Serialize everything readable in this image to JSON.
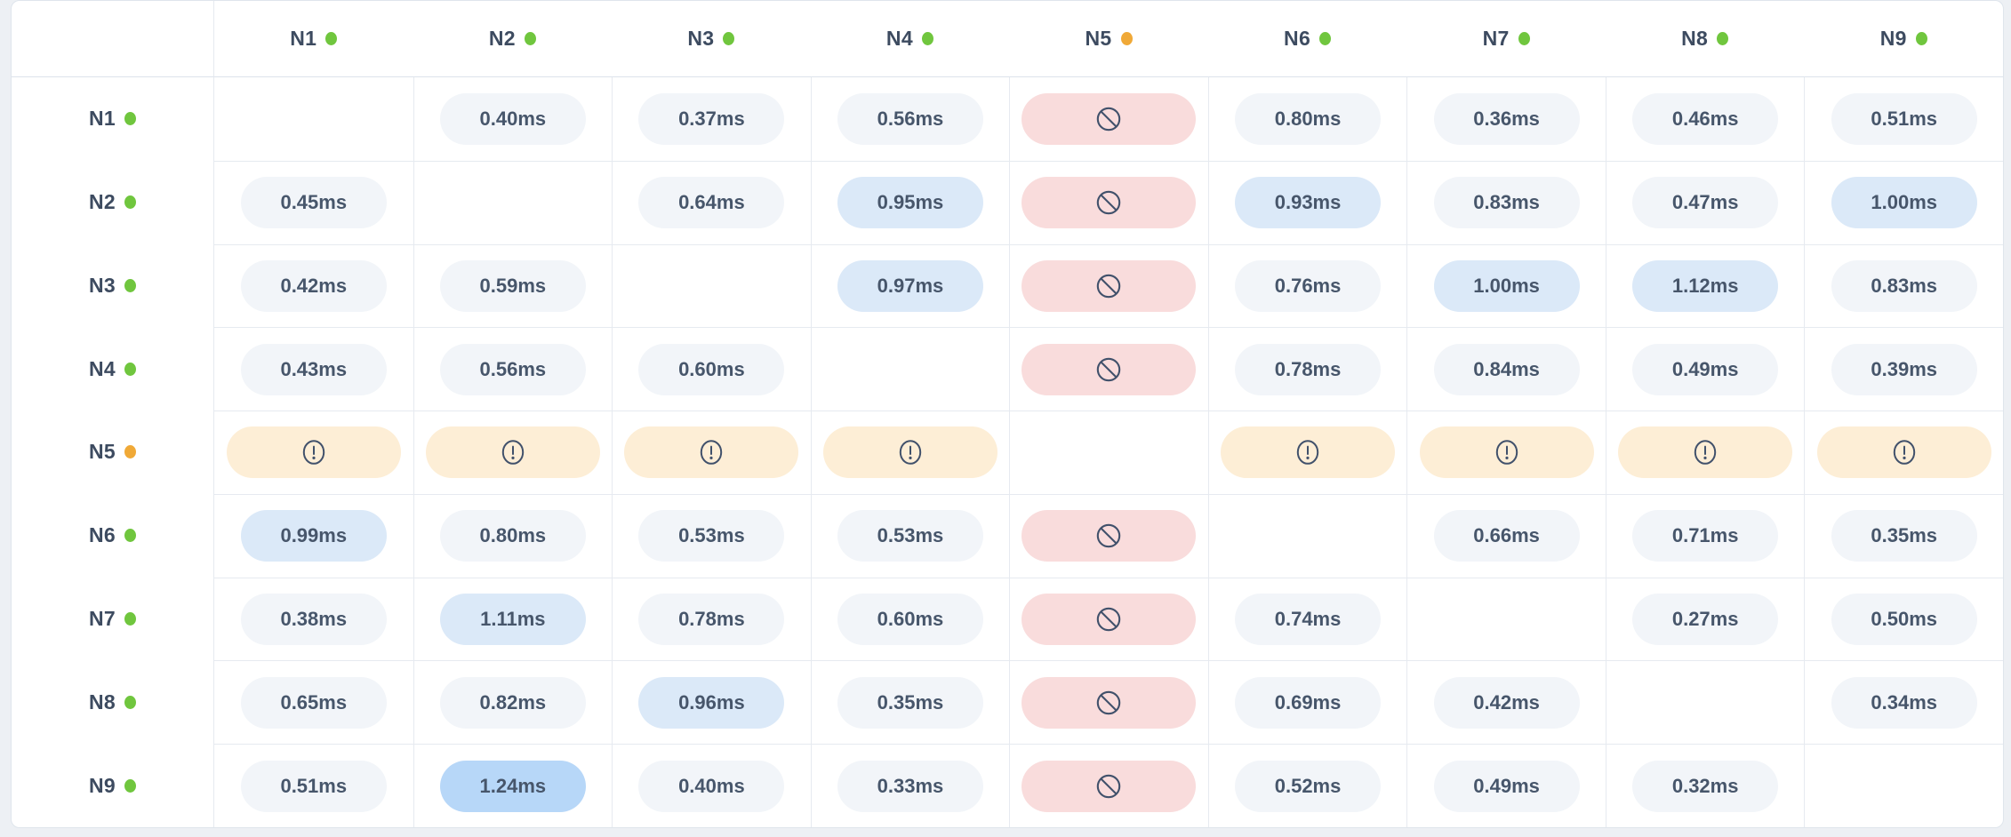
{
  "matrix": {
    "columns": [
      {
        "label": "N1",
        "status": "healthy"
      },
      {
        "label": "N2",
        "status": "healthy"
      },
      {
        "label": "N3",
        "status": "healthy"
      },
      {
        "label": "N4",
        "status": "healthy"
      },
      {
        "label": "N5",
        "status": "warning"
      },
      {
        "label": "N6",
        "status": "healthy"
      },
      {
        "label": "N7",
        "status": "healthy"
      },
      {
        "label": "N8",
        "status": "healthy"
      },
      {
        "label": "N9",
        "status": "healthy"
      }
    ],
    "rows": [
      {
        "label": "N1",
        "status": "healthy",
        "cells": [
          {
            "type": "self"
          },
          {
            "type": "latency",
            "value": "0.40ms",
            "highlight": "none"
          },
          {
            "type": "latency",
            "value": "0.37ms",
            "highlight": "none"
          },
          {
            "type": "latency",
            "value": "0.56ms",
            "highlight": "none"
          },
          {
            "type": "blocked"
          },
          {
            "type": "latency",
            "value": "0.80ms",
            "highlight": "none"
          },
          {
            "type": "latency",
            "value": "0.36ms",
            "highlight": "none"
          },
          {
            "type": "latency",
            "value": "0.46ms",
            "highlight": "none"
          },
          {
            "type": "latency",
            "value": "0.51ms",
            "highlight": "none"
          }
        ]
      },
      {
        "label": "N2",
        "status": "healthy",
        "cells": [
          {
            "type": "latency",
            "value": "0.45ms",
            "highlight": "none"
          },
          {
            "type": "self"
          },
          {
            "type": "latency",
            "value": "0.64ms",
            "highlight": "none"
          },
          {
            "type": "latency",
            "value": "0.95ms",
            "highlight": "high"
          },
          {
            "type": "blocked"
          },
          {
            "type": "latency",
            "value": "0.93ms",
            "highlight": "high"
          },
          {
            "type": "latency",
            "value": "0.83ms",
            "highlight": "none"
          },
          {
            "type": "latency",
            "value": "0.47ms",
            "highlight": "none"
          },
          {
            "type": "latency",
            "value": "1.00ms",
            "highlight": "high"
          }
        ]
      },
      {
        "label": "N3",
        "status": "healthy",
        "cells": [
          {
            "type": "latency",
            "value": "0.42ms",
            "highlight": "none"
          },
          {
            "type": "latency",
            "value": "0.59ms",
            "highlight": "none"
          },
          {
            "type": "self"
          },
          {
            "type": "latency",
            "value": "0.97ms",
            "highlight": "high"
          },
          {
            "type": "blocked"
          },
          {
            "type": "latency",
            "value": "0.76ms",
            "highlight": "none"
          },
          {
            "type": "latency",
            "value": "1.00ms",
            "highlight": "high"
          },
          {
            "type": "latency",
            "value": "1.12ms",
            "highlight": "high"
          },
          {
            "type": "latency",
            "value": "0.83ms",
            "highlight": "none"
          }
        ]
      },
      {
        "label": "N4",
        "status": "healthy",
        "cells": [
          {
            "type": "latency",
            "value": "0.43ms",
            "highlight": "none"
          },
          {
            "type": "latency",
            "value": "0.56ms",
            "highlight": "none"
          },
          {
            "type": "latency",
            "value": "0.60ms",
            "highlight": "none"
          },
          {
            "type": "self"
          },
          {
            "type": "blocked"
          },
          {
            "type": "latency",
            "value": "0.78ms",
            "highlight": "none"
          },
          {
            "type": "latency",
            "value": "0.84ms",
            "highlight": "none"
          },
          {
            "type": "latency",
            "value": "0.49ms",
            "highlight": "none"
          },
          {
            "type": "latency",
            "value": "0.39ms",
            "highlight": "none"
          }
        ]
      },
      {
        "label": "N5",
        "status": "warning",
        "cells": [
          {
            "type": "warning"
          },
          {
            "type": "warning"
          },
          {
            "type": "warning"
          },
          {
            "type": "warning"
          },
          {
            "type": "self"
          },
          {
            "type": "warning"
          },
          {
            "type": "warning"
          },
          {
            "type": "warning"
          },
          {
            "type": "warning"
          }
        ]
      },
      {
        "label": "N6",
        "status": "healthy",
        "cells": [
          {
            "type": "latency",
            "value": "0.99ms",
            "highlight": "high"
          },
          {
            "type": "latency",
            "value": "0.80ms",
            "highlight": "none"
          },
          {
            "type": "latency",
            "value": "0.53ms",
            "highlight": "none"
          },
          {
            "type": "latency",
            "value": "0.53ms",
            "highlight": "none"
          },
          {
            "type": "blocked"
          },
          {
            "type": "self"
          },
          {
            "type": "latency",
            "value": "0.66ms",
            "highlight": "none"
          },
          {
            "type": "latency",
            "value": "0.71ms",
            "highlight": "none"
          },
          {
            "type": "latency",
            "value": "0.35ms",
            "highlight": "none"
          }
        ]
      },
      {
        "label": "N7",
        "status": "healthy",
        "cells": [
          {
            "type": "latency",
            "value": "0.38ms",
            "highlight": "none"
          },
          {
            "type": "latency",
            "value": "1.11ms",
            "highlight": "high"
          },
          {
            "type": "latency",
            "value": "0.78ms",
            "highlight": "none"
          },
          {
            "type": "latency",
            "value": "0.60ms",
            "highlight": "none"
          },
          {
            "type": "blocked"
          },
          {
            "type": "latency",
            "value": "0.74ms",
            "highlight": "none"
          },
          {
            "type": "self"
          },
          {
            "type": "latency",
            "value": "0.27ms",
            "highlight": "none"
          },
          {
            "type": "latency",
            "value": "0.50ms",
            "highlight": "none"
          }
        ]
      },
      {
        "label": "N8",
        "status": "healthy",
        "cells": [
          {
            "type": "latency",
            "value": "0.65ms",
            "highlight": "none"
          },
          {
            "type": "latency",
            "value": "0.82ms",
            "highlight": "none"
          },
          {
            "type": "latency",
            "value": "0.96ms",
            "highlight": "high"
          },
          {
            "type": "latency",
            "value": "0.35ms",
            "highlight": "none"
          },
          {
            "type": "blocked"
          },
          {
            "type": "latency",
            "value": "0.69ms",
            "highlight": "none"
          },
          {
            "type": "latency",
            "value": "0.42ms",
            "highlight": "none"
          },
          {
            "type": "self"
          },
          {
            "type": "latency",
            "value": "0.34ms",
            "highlight": "none"
          }
        ]
      },
      {
        "label": "N9",
        "status": "healthy",
        "cells": [
          {
            "type": "latency",
            "value": "0.51ms",
            "highlight": "none"
          },
          {
            "type": "latency",
            "value": "1.24ms",
            "highlight": "max"
          },
          {
            "type": "latency",
            "value": "0.40ms",
            "highlight": "none"
          },
          {
            "type": "latency",
            "value": "0.33ms",
            "highlight": "none"
          },
          {
            "type": "blocked"
          },
          {
            "type": "latency",
            "value": "0.52ms",
            "highlight": "none"
          },
          {
            "type": "latency",
            "value": "0.49ms",
            "highlight": "none"
          },
          {
            "type": "latency",
            "value": "0.32ms",
            "highlight": "none"
          },
          {
            "type": "self"
          }
        ]
      }
    ]
  },
  "icons": {
    "blocked": "no-entry-icon",
    "warning": "alert-circle-icon",
    "status": "status-dot-icon"
  },
  "colors": {
    "page_bg": "#edf0f4",
    "card_bg": "#ffffff",
    "card_border": "#dfe5ec",
    "grid_line": "#e6eaf0",
    "header_line": "#dde3eb",
    "pill_bg": "#f2f5f9",
    "pill_high_bg": "#dbe9f8",
    "pill_max_bg": "#b7d7f8",
    "pill_blocked_bg": "#f9dcdc",
    "pill_warning_bg": "#fdeed6",
    "value_text": "#47566b",
    "label_text": "#3d4b60",
    "icon_stroke": "#41516b",
    "status_healthy": "#70c63e",
    "status_warning": "#f0a937"
  }
}
